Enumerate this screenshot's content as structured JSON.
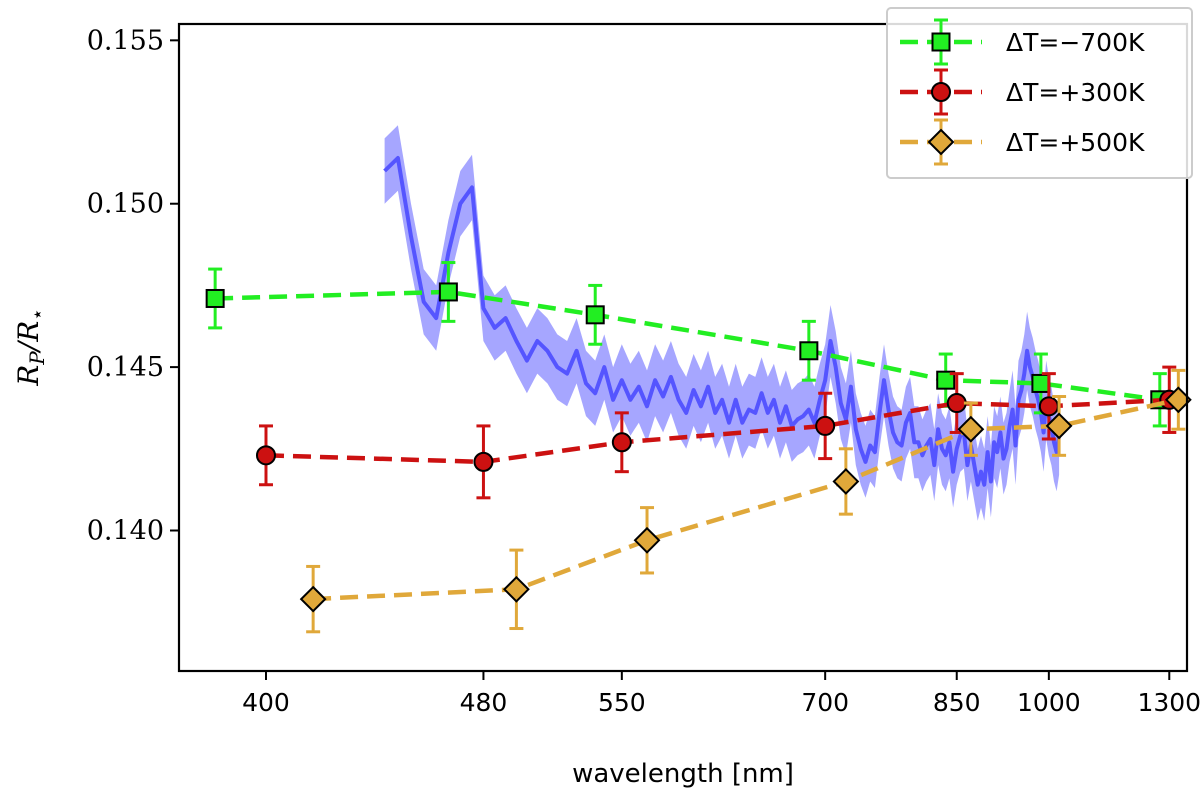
{
  "chart_data": {
    "type": "line",
    "xlabel": "wavelength [nm]",
    "ylabel_main": "R",
    "ylabel_sub": "P",
    "ylabel_denominator": "/R",
    "ylabel_star": "⋆",
    "x_scale": "reciprocal",
    "xlim": [
      375,
      1360
    ],
    "ylim": [
      0.1357,
      0.1555
    ],
    "x_ticks": [
      400,
      480,
      550,
      700,
      850,
      1000,
      1300
    ],
    "x_tick_labels": [
      "400",
      "480",
      "550",
      "700",
      "850",
      "1000",
      "1300"
    ],
    "y_ticks": [
      0.14,
      0.145,
      0.15,
      0.155
    ],
    "y_tick_labels": [
      "0.140",
      "0.145",
      "0.150",
      "0.155"
    ],
    "grid": false,
    "legend_position": "top-right",
    "series": [
      {
        "name": "ΔT=−700K",
        "color": "#22ee22",
        "marker": "square",
        "x": [
          385,
          465,
          535,
          685,
          835,
          985,
          1270
        ],
        "y": [
          0.1471,
          0.1473,
          0.1466,
          0.1455,
          0.1446,
          0.1445,
          0.144
        ],
        "err": [
          0.0009,
          0.0009,
          0.0009,
          0.0009,
          0.0008,
          0.0009,
          0.0008
        ]
      },
      {
        "name": "ΔT=+300K",
        "color": "#cc1111",
        "marker": "circle",
        "x": [
          400,
          480,
          550,
          700,
          850,
          1000,
          1300
        ],
        "y": [
          0.1423,
          0.1421,
          0.1427,
          0.1432,
          0.1439,
          0.1438,
          0.144
        ],
        "err": [
          0.0009,
          0.0011,
          0.0009,
          0.001,
          0.0009,
          0.001,
          0.001
        ]
      },
      {
        "name": "ΔT=+500K",
        "color": "#e0a83a",
        "marker": "diamond",
        "x": [
          415,
          495,
          565,
          720,
          870,
          1020,
          1330
        ],
        "y": [
          0.1379,
          0.1382,
          0.1397,
          0.1415,
          0.1431,
          0.1432,
          0.144
        ],
        "err": [
          0.001,
          0.0012,
          0.001,
          0.001,
          0.0008,
          0.0009,
          0.0009
        ]
      }
    ],
    "spectrum": {
      "color": "#5555ff",
      "band_color": "#8888ff",
      "x": [
        440,
        445,
        450,
        455,
        460,
        465,
        470,
        475,
        480,
        485,
        490,
        495,
        500,
        505,
        510,
        515,
        520,
        525,
        530,
        535,
        540,
        545,
        550,
        555,
        560,
        565,
        570,
        575,
        580,
        585,
        590,
        595,
        600,
        605,
        610,
        615,
        620,
        625,
        630,
        635,
        640,
        645,
        650,
        655,
        660,
        665,
        670,
        675,
        680,
        685,
        690,
        695,
        700,
        705,
        710,
        715,
        720,
        725,
        730,
        735,
        740,
        745,
        750,
        755,
        760,
        765,
        770,
        775,
        780,
        785,
        790,
        795,
        800,
        805,
        810,
        815,
        820,
        825,
        830,
        835,
        840,
        845,
        850,
        855,
        860,
        865,
        870,
        875,
        880,
        885,
        890,
        895,
        900,
        905,
        910,
        915,
        920,
        925,
        930,
        935,
        940,
        945,
        950,
        955,
        960,
        965,
        970,
        975,
        980,
        985,
        990,
        995,
        1000,
        1005,
        1010,
        1015,
        1020
      ],
      "y": [
        0.151,
        0.1514,
        0.149,
        0.147,
        0.1465,
        0.1485,
        0.15,
        0.1505,
        0.1468,
        0.1462,
        0.1465,
        0.1458,
        0.1452,
        0.1458,
        0.1455,
        0.145,
        0.1448,
        0.1455,
        0.1445,
        0.1442,
        0.145,
        0.144,
        0.1446,
        0.144,
        0.1444,
        0.1438,
        0.1446,
        0.1441,
        0.1447,
        0.144,
        0.1436,
        0.1443,
        0.1438,
        0.1444,
        0.1436,
        0.144,
        0.1433,
        0.144,
        0.1433,
        0.1437,
        0.1436,
        0.1442,
        0.1436,
        0.144,
        0.1433,
        0.1438,
        0.1432,
        0.1434,
        0.1435,
        0.1437,
        0.1433,
        0.144,
        0.1446,
        0.1458,
        0.145,
        0.1439,
        0.1434,
        0.1444,
        0.1431,
        0.1425,
        0.1421,
        0.1426,
        0.1424,
        0.1436,
        0.1446,
        0.1437,
        0.143,
        0.1427,
        0.1426,
        0.1433,
        0.1436,
        0.1427,
        0.1427,
        0.1423,
        0.1426,
        0.1428,
        0.142,
        0.1431,
        0.1425,
        0.1423,
        0.1427,
        0.1418,
        0.1425,
        0.1429,
        0.143,
        0.142,
        0.1426,
        0.142,
        0.1414,
        0.1418,
        0.1414,
        0.1424,
        0.1415,
        0.1427,
        0.1424,
        0.143,
        0.1422,
        0.1425,
        0.1432,
        0.1437,
        0.1426,
        0.144,
        0.1443,
        0.1448,
        0.1455,
        0.145,
        0.1447,
        0.1443,
        0.144,
        0.1436,
        0.143,
        0.144,
        0.1435,
        0.1432,
        0.1427,
        0.1424,
        0.1429
      ],
      "err": [
        0.001,
        0.001,
        0.001,
        0.001,
        0.001,
        0.001,
        0.001,
        0.001,
        0.001,
        0.001,
        0.001,
        0.001,
        0.001,
        0.001,
        0.001,
        0.001,
        0.001,
        0.001,
        0.001,
        0.001,
        0.001,
        0.001,
        0.0011,
        0.0011,
        0.0011,
        0.0011,
        0.0011,
        0.0011,
        0.0011,
        0.0011,
        0.0011,
        0.0011,
        0.0011,
        0.0011,
        0.0011,
        0.0011,
        0.0011,
        0.0011,
        0.0011,
        0.0011,
        0.0011,
        0.0011,
        0.0011,
        0.0011,
        0.0011,
        0.0011,
        0.0011,
        0.0011,
        0.0011,
        0.0011,
        0.0011,
        0.0011,
        0.0011,
        0.0011,
        0.0011,
        0.0011,
        0.0011,
        0.0011,
        0.0011,
        0.0011,
        0.0011,
        0.0011,
        0.0011,
        0.0011,
        0.0011,
        0.0011,
        0.0011,
        0.0011,
        0.0011,
        0.0011,
        0.0011,
        0.0011,
        0.0011,
        0.0011,
        0.0011,
        0.0011,
        0.0011,
        0.0011,
        0.0011,
        0.0011,
        0.0011,
        0.0011,
        0.0011,
        0.0011,
        0.0011,
        0.0011,
        0.0011,
        0.0011,
        0.0011,
        0.0011,
        0.0011,
        0.0011,
        0.0011,
        0.0011,
        0.0011,
        0.0011,
        0.0011,
        0.0011,
        0.0011,
        0.0012,
        0.0012,
        0.0012,
        0.0012,
        0.0012,
        0.0012,
        0.0012,
        0.0012,
        0.0012,
        0.0012,
        0.0012,
        0.0012,
        0.0012,
        0.0012,
        0.0012,
        0.0012,
        0.0012,
        0.0012
      ]
    }
  }
}
